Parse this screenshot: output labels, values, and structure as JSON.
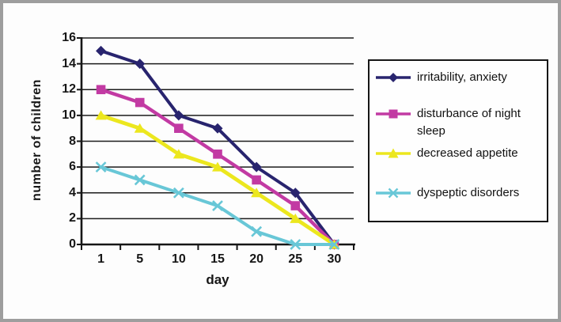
{
  "chart_data": {
    "type": "line",
    "title": "",
    "xlabel": "day",
    "ylabel": "number of children",
    "categories": [
      "1",
      "5",
      "10",
      "15",
      "20",
      "25",
      "30"
    ],
    "yticks": [
      0,
      2,
      4,
      6,
      8,
      10,
      12,
      14,
      16
    ],
    "ylim": [
      0,
      16
    ],
    "grid": "horizontal-black",
    "legend_position": "right",
    "series": [
      {
        "name": "irritability, anxiety",
        "marker": "diamond",
        "color": "#28246e",
        "values": [
          15,
          14,
          10,
          9,
          6,
          4,
          0
        ]
      },
      {
        "name": "disturbance of night sleep",
        "marker": "square",
        "color": "#c23aa3",
        "values": [
          12,
          11,
          9,
          7,
          5,
          3,
          0
        ]
      },
      {
        "name": "decreased appetite",
        "marker": "triangle",
        "color": "#ece71e",
        "values": [
          10,
          9,
          7,
          6,
          4,
          2,
          0
        ]
      },
      {
        "name": "dyspeptic disorders",
        "marker": "x",
        "color": "#68c7d7",
        "values": [
          6,
          5,
          4,
          3,
          1,
          0,
          0
        ]
      }
    ]
  },
  "colors": {
    "grid": "#1c1c1c",
    "axis": "#161616",
    "frame_border": "#9e9e9e",
    "plot_background": "#fdfdfd",
    "legend_border": "#161616"
  }
}
